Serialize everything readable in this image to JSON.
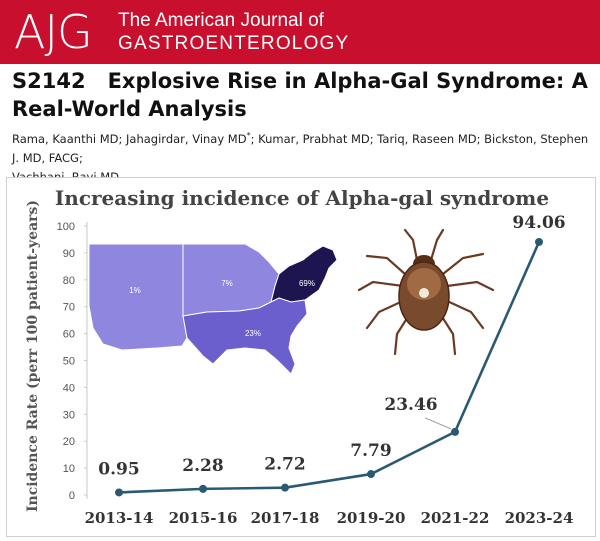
{
  "header": {
    "logo": "AJG",
    "journal_line1": "The American Journal of",
    "journal_line2": "GASTROENTEROLOGY"
  },
  "abstract": {
    "id": "S2142",
    "title": "Explosive Rise in Alpha-Gal Syndrome: A Real-World Analysis",
    "authors_line1": "Rama, Kaanthi MD; Jahagirdar, Vinay MD",
    "authors_sup": "*",
    "authors_line1b": "; Kumar, Prabhat MD; Tariq, Raseen MD; Bickston, Stephen J. MD, FACG;",
    "authors_line2": "Vachhani, Ravi MD"
  },
  "colors": {
    "brand_red": "#c8102e",
    "line": "#2a5a73",
    "map_light": "#8f86e0",
    "map_mid": "#6a5fcc",
    "map_dark": "#1d1550"
  },
  "map": {
    "regions": [
      {
        "name": "west",
        "label": "1%"
      },
      {
        "name": "midwest",
        "label": "7%"
      },
      {
        "name": "northeast",
        "label": "69%"
      },
      {
        "name": "south",
        "label": "23%"
      }
    ]
  },
  "chart_data": {
    "type": "line",
    "title": "Increasing incidence of Alpha-gal syndrome",
    "xlabel": "",
    "ylabel": "Incidence Rate (perr 100 patient-years)",
    "categories": [
      "2013-14",
      "2015-16",
      "2017-18",
      "2019-20",
      "2021-22",
      "2023-24"
    ],
    "values": [
      0.95,
      2.28,
      2.72,
      7.79,
      23.46,
      94.06
    ],
    "data_labels": [
      "0.95",
      "2.28",
      "2.72",
      "7.79",
      "23.46",
      "94.06"
    ],
    "ylim": [
      0,
      100
    ],
    "yticks": [
      0,
      10,
      20,
      30,
      40,
      50,
      60,
      70,
      80,
      90,
      100
    ],
    "grid": false,
    "legend": "none"
  }
}
